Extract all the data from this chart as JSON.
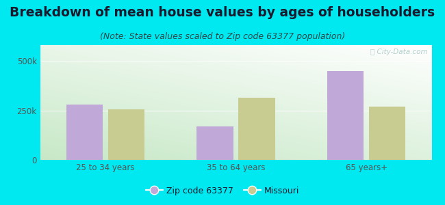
{
  "title": "Breakdown of mean house values by ages of householders",
  "subtitle": "(Note: State values scaled to Zip code 63377 population)",
  "categories": [
    "25 to 34 years",
    "35 to 64 years",
    "65 years+"
  ],
  "zip_values": [
    280000,
    168000,
    450000
  ],
  "state_values": [
    255000,
    315000,
    268000
  ],
  "zip_color": "#c0a8d8",
  "state_color": "#c8cc90",
  "zip_label": "Zip code 63377",
  "state_label": "Missouri",
  "background_outer": "#00e8f0",
  "ylim": [
    0,
    580000
  ],
  "yticks": [
    0,
    250000,
    500000
  ],
  "bar_width": 0.28,
  "title_fontsize": 13.5,
  "subtitle_fontsize": 9,
  "title_color": "#1a1a2e",
  "subtitle_color": "#2a4a4a",
  "tick_color": "#555555",
  "grid_color": "#e0e8e0",
  "watermark_color": "#a8c8c8"
}
